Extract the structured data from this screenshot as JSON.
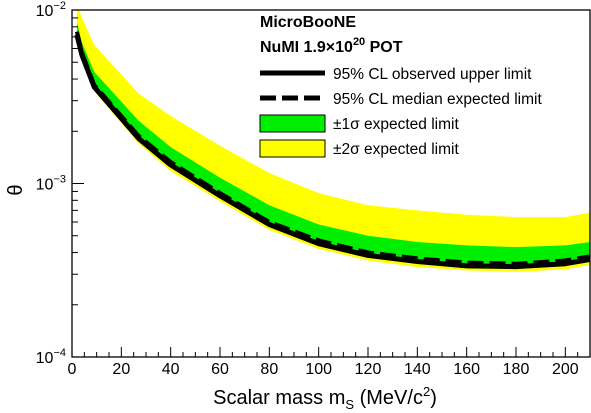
{
  "chart_data": {
    "type": "area",
    "title": "",
    "xlabel": "Scalar mass m",
    "xlabel_sub": "S",
    "xlabel_unit_pre": " (MeV/c",
    "xlabel_unit_sup": "2",
    "xlabel_unit_post": ")",
    "ylabel": "θ",
    "xlim": [
      0,
      210
    ],
    "ylim": [
      0.0001,
      0.01
    ],
    "yscale": "log",
    "x_ticks": [
      0,
      20,
      40,
      60,
      80,
      100,
      120,
      140,
      160,
      180,
      200
    ],
    "x_tick_labels": [
      "0",
      "20",
      "40",
      "60",
      "80",
      "100",
      "120",
      "140",
      "160",
      "180",
      "200"
    ],
    "y_ticks": [
      0.0001,
      0.001,
      0.01
    ],
    "y_tick_labels": [
      {
        "base": "10",
        "exp": "−4"
      },
      {
        "base": "10",
        "exp": "−3"
      },
      {
        "base": "10",
        "exp": "−2"
      }
    ],
    "grid": false,
    "legend_position": "top-right",
    "legend": {
      "title_line1": "MicroBooNE",
      "title_line2_pre": "NuMI 1.9×10",
      "title_line2_sup": "20",
      "title_line2_post": " POT",
      "entries": [
        {
          "label": "95% CL observed upper limit"
        },
        {
          "label": "95% CL median expected limit"
        },
        {
          "label": "±1σ expected limit"
        },
        {
          "label": "±2σ expected limit"
        }
      ]
    },
    "colors": {
      "observed": "#000000",
      "expected": "#000000",
      "band_1sigma": "#00ee00",
      "band_2sigma": "#ffff00"
    },
    "x": [
      2,
      4,
      9,
      27,
      40,
      60,
      80,
      100,
      120,
      140,
      160,
      180,
      200,
      210
    ],
    "series": [
      {
        "name": "95% CL observed upper limit",
        "values": [
          0.0072,
          0.0055,
          0.0036,
          0.00182,
          0.00128,
          0.00085,
          0.00058,
          0.00045,
          0.000385,
          0.000355,
          0.000335,
          0.000332,
          0.000345,
          0.000365
        ]
      },
      {
        "name": "95% CL median expected limit",
        "values": [
          0.0075,
          0.0057,
          0.0037,
          0.00188,
          0.00133,
          0.00088,
          0.0006,
          0.00047,
          0.0004,
          0.00037,
          0.00035,
          0.000345,
          0.00036,
          0.00038
        ]
      },
      {
        "name": "−2σ",
        "values": [
          0.0068,
          0.0052,
          0.0034,
          0.0017,
          0.00118,
          0.00079,
          0.00054,
          0.00042,
          0.00036,
          0.00033,
          0.000315,
          0.00031,
          0.00032,
          0.00034
        ]
      },
      {
        "name": "−1σ",
        "values": [
          0.0071,
          0.0054,
          0.00355,
          0.0018,
          0.00126,
          0.00084,
          0.00057,
          0.00045,
          0.000385,
          0.000355,
          0.000335,
          0.00033,
          0.00034,
          0.00036
        ]
      },
      {
        "name": "+1σ",
        "values": [
          0.0085,
          0.0065,
          0.0044,
          0.0023,
          0.00162,
          0.00108,
          0.00075,
          0.00058,
          0.0005,
          0.00046,
          0.00044,
          0.00043,
          0.00044,
          0.00046
        ]
      },
      {
        "name": "+2σ",
        "values": [
          0.011,
          0.009,
          0.0063,
          0.0033,
          0.00245,
          0.00165,
          0.00115,
          0.00088,
          0.00075,
          0.0007,
          0.00066,
          0.00064,
          0.00064,
          0.00068
        ]
      }
    ]
  }
}
